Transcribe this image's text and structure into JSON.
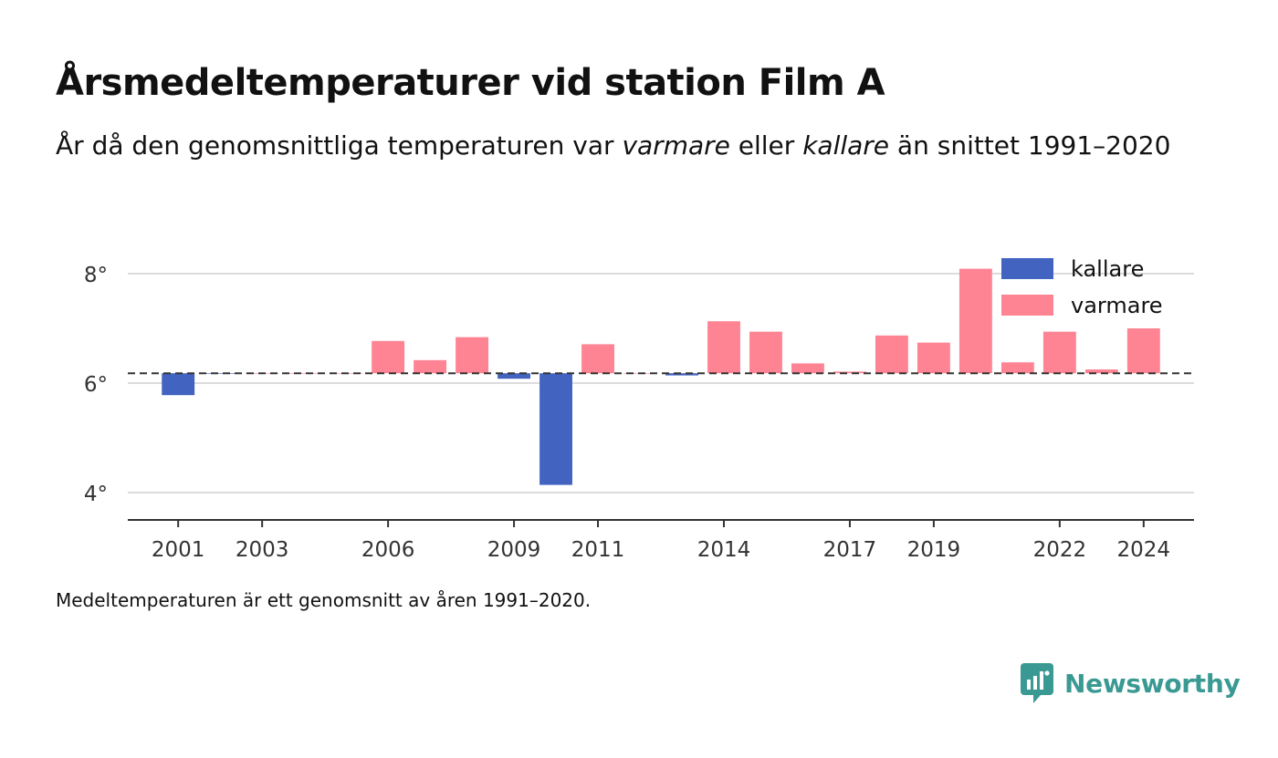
{
  "title": "Årsmedeltemperaturer vid station Film A",
  "subtitle": {
    "part1": "År då den genomsnittliga temperaturen var ",
    "warmer": "varmare",
    "part2": " eller ",
    "colder": "kallare",
    "part3": " än snittet 1991–2020"
  },
  "footnote": "Medeltemperaturen är ett genomsnitt av åren 1991–2020.",
  "brand": {
    "name": "Newsworthy",
    "color": "#3a9a93"
  },
  "colors": {
    "colder": "#4263c0",
    "warmer": "#ff8493",
    "reference_line": "#333333"
  },
  "chart_data": {
    "type": "bar",
    "baseline": 6.18,
    "ylim": [
      3.5,
      8.5
    ],
    "xlim": [
      1999.8,
      2025.2
    ],
    "y_ticks": [
      4,
      6,
      8
    ],
    "y_tick_suffix": "°",
    "x_ticks": [
      2001,
      2003,
      2006,
      2009,
      2011,
      2014,
      2017,
      2019,
      2022,
      2024
    ],
    "grid": true,
    "legend_position": "top-right",
    "legend": [
      {
        "key": "colder",
        "label": "kallare"
      },
      {
        "key": "warmer",
        "label": "varmare"
      }
    ],
    "x": [
      2001,
      2002,
      2003,
      2004,
      2005,
      2006,
      2007,
      2008,
      2009,
      2010,
      2011,
      2012,
      2013,
      2014,
      2015,
      2016,
      2017,
      2018,
      2019,
      2020,
      2021,
      2022,
      2023,
      2024
    ],
    "values": [
      5.78,
      6.17,
      6.18,
      6.18,
      6.18,
      6.77,
      6.42,
      6.84,
      6.08,
      4.14,
      6.71,
      6.18,
      6.14,
      7.13,
      6.94,
      6.36,
      6.21,
      6.87,
      6.74,
      8.09,
      6.38,
      6.94,
      6.25,
      7.0
    ]
  }
}
